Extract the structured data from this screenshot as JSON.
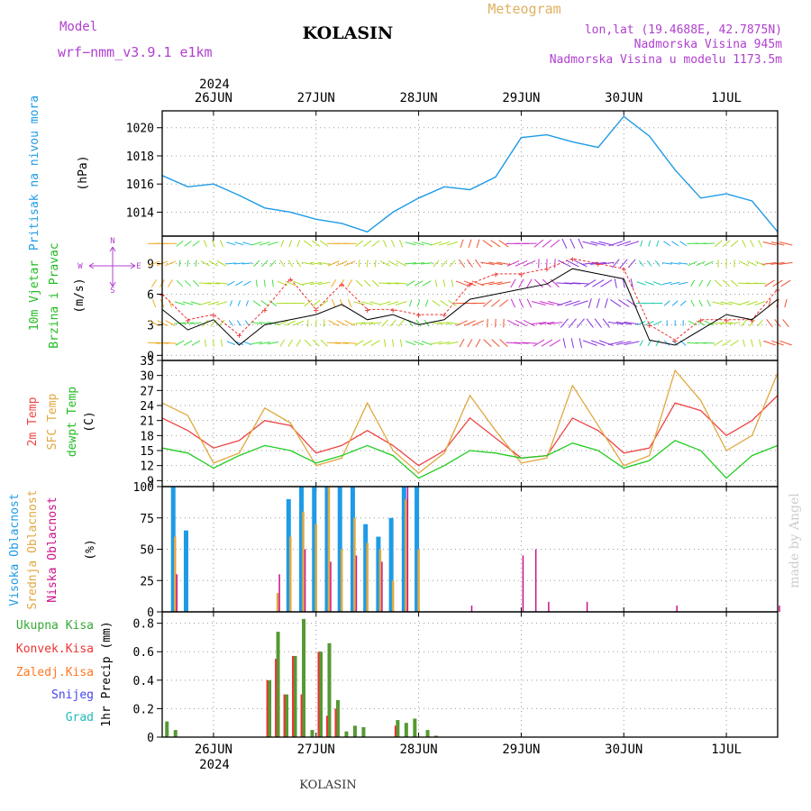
{
  "header": {
    "model_label": "Model",
    "model_name": "wrf−nmm_v3.9.1  e1km",
    "station": "KOLASIN",
    "product": "Meteogram",
    "lonlat": "lon,lat (19.4688E, 42.7875N)",
    "altitude": "Nadmorska Visina 945m",
    "model_altitude": "Nadmorska Visina u modelu 1173.5m",
    "footer_station": "KOLASIN",
    "watermark": "made by Angel"
  },
  "time_axis": {
    "year": "2024",
    "start": "2024-06-25T12:00",
    "end": "2024-07-01T12:00",
    "day_ticks": [
      "26JUN",
      "27JUN",
      "28JUN",
      "29JUN",
      "30JUN",
      "1JUL"
    ]
  },
  "colors": {
    "pressure": "#1e9be6",
    "temp2m": "#ee4444",
    "sfc_temp": "#e0a840",
    "dewpt": "#22cc22",
    "high_cloud": "#1e9be6",
    "mid_cloud": "#e0a840",
    "low_cloud": "#cc1188",
    "total_precip": "#33aa33",
    "convective": "#ee3333",
    "frozen": "#ff7722",
    "snow": "#4444ee",
    "graupel": "#22bbbb",
    "grid": "#999999",
    "label_magenta": "#b040d0",
    "label_gold": "#e0b060"
  },
  "chart_data": [
    {
      "type": "line",
      "ylabel_name": "Pritisak na nivou mora",
      "ylabel_unit": "(hPa)",
      "yticks": [
        1014,
        1016,
        1018,
        1020
      ],
      "ylim": [
        1012.3,
        1021.2
      ],
      "series": [
        {
          "x": [
            "2024-06-25T12:00",
            "2024-06-25T18:00",
            "2024-06-26T00:00",
            "2024-06-26T06:00",
            "2024-06-26T12:00",
            "2024-06-26T18:00",
            "2024-06-27T00:00",
            "2024-06-27T06:00",
            "2024-06-27T12:00",
            "2024-06-27T18:00",
            "2024-06-28T00:00",
            "2024-06-28T06:00",
            "2024-06-28T12:00",
            "2024-06-28T18:00",
            "2024-06-29T00:00",
            "2024-06-29T06:00",
            "2024-06-29T12:00",
            "2024-06-29T18:00",
            "2024-06-30T00:00",
            "2024-06-30T06:00",
            "2024-06-30T12:00",
            "2024-06-30T18:00",
            "2024-07-01T00:00",
            "2024-07-01T06:00",
            "2024-07-01T12:00"
          ],
          "values": [
            1016.6,
            1015.8,
            1016.0,
            1015.2,
            1014.3,
            1014.0,
            1013.5,
            1013.2,
            1012.6,
            1014.0,
            1015.0,
            1015.8,
            1015.6,
            1016.5,
            1019.3,
            1019.5,
            1019.0,
            1018.6,
            1020.8,
            1019.4,
            1017.0,
            1015.0,
            1015.3,
            1014.8,
            1012.6
          ]
        }
      ]
    },
    {
      "type": "line",
      "ylabel_name": "10m Vjetar",
      "ylabel_name2": "Brzina i Pravac",
      "ylabel_unit": "(m/s)",
      "compass": [
        "N",
        "S",
        "W",
        "E"
      ],
      "yticks": [
        0,
        3,
        6,
        9
      ],
      "ylim": [
        -0.5,
        11.7
      ],
      "series": [
        {
          "name": "speed",
          "x": [
            "2024-06-25T12:00",
            "2024-06-25T18:00",
            "2024-06-26T00:00",
            "2024-06-26T06:00",
            "2024-06-26T12:00",
            "2024-06-26T18:00",
            "2024-06-27T00:00",
            "2024-06-27T06:00",
            "2024-06-27T12:00",
            "2024-06-27T18:00",
            "2024-06-28T00:00",
            "2024-06-28T06:00",
            "2024-06-28T12:00",
            "2024-06-28T18:00",
            "2024-06-29T00:00",
            "2024-06-29T06:00",
            "2024-06-29T12:00",
            "2024-06-29T18:00",
            "2024-06-30T00:00",
            "2024-06-30T06:00",
            "2024-06-30T12:00",
            "2024-06-30T18:00",
            "2024-07-01T00:00",
            "2024-07-01T06:00",
            "2024-07-01T12:00"
          ],
          "values": [
            4.5,
            2.5,
            3.5,
            1.0,
            3.0,
            3.5,
            4.0,
            5.0,
            3.5,
            4.0,
            3.0,
            3.5,
            5.5,
            6.0,
            6.5,
            7.0,
            8.5,
            8.0,
            7.5,
            1.5,
            1.0,
            2.5,
            4.0,
            3.5,
            5.5
          ]
        },
        {
          "name": "gust",
          "x": [
            "2024-06-25T12:00",
            "2024-06-25T18:00",
            "2024-06-26T00:00",
            "2024-06-26T06:00",
            "2024-06-26T12:00",
            "2024-06-26T18:00",
            "2024-06-27T00:00",
            "2024-06-27T06:00",
            "2024-06-27T12:00",
            "2024-06-27T18:00",
            "2024-06-28T00:00",
            "2024-06-28T06:00",
            "2024-06-28T12:00",
            "2024-06-28T18:00",
            "2024-06-29T00:00",
            "2024-06-29T06:00",
            "2024-06-29T12:00",
            "2024-06-29T18:00",
            "2024-06-30T00:00",
            "2024-06-30T06:00",
            "2024-06-30T12:00",
            "2024-06-30T18:00",
            "2024-07-01T00:00",
            "2024-07-01T06:00",
            "2024-07-01T12:00"
          ],
          "values": [
            6.0,
            3.5,
            4.0,
            2.0,
            4.5,
            7.5,
            4.5,
            7.0,
            4.5,
            4.5,
            4.0,
            4.0,
            7.0,
            8.0,
            8.0,
            8.5,
            9.5,
            9.0,
            8.5,
            3.0,
            1.5,
            3.5,
            3.5,
            3.5,
            6.5
          ]
        }
      ]
    },
    {
      "type": "line",
      "ylabel_name1": "2m Temp",
      "ylabel_name2": "SFC Temp",
      "ylabel_name3": "dewpt Temp",
      "ylabel_unit": "(C)",
      "yticks": [
        9,
        12,
        15,
        18,
        21,
        24,
        27,
        30,
        33
      ],
      "ylim": [
        7.8,
        33
      ],
      "series": [
        {
          "name": "2m Temp",
          "x": [
            "2024-06-25T12:00",
            "2024-06-25T18:00",
            "2024-06-26T00:00",
            "2024-06-26T06:00",
            "2024-06-26T12:00",
            "2024-06-26T18:00",
            "2024-06-27T00:00",
            "2024-06-27T06:00",
            "2024-06-27T12:00",
            "2024-06-27T18:00",
            "2024-06-28T00:00",
            "2024-06-28T06:00",
            "2024-06-28T12:00",
            "2024-06-28T18:00",
            "2024-06-29T00:00",
            "2024-06-29T06:00",
            "2024-06-29T12:00",
            "2024-06-29T18:00",
            "2024-06-30T00:00",
            "2024-06-30T06:00",
            "2024-06-30T12:00",
            "2024-06-30T18:00",
            "2024-07-01T00:00",
            "2024-07-01T06:00",
            "2024-07-01T12:00"
          ],
          "values": [
            21.5,
            19.0,
            15.5,
            17.0,
            21.0,
            20.0,
            14.5,
            16.0,
            19.0,
            16.0,
            12.0,
            15.0,
            21.5,
            17.5,
            13.5,
            14.0,
            21.5,
            19.0,
            14.5,
            15.5,
            24.5,
            23.0,
            18.0,
            21.0,
            26.0
          ]
        },
        {
          "name": "SFC Temp",
          "x": [
            "2024-06-25T12:00",
            "2024-06-25T18:00",
            "2024-06-26T00:00",
            "2024-06-26T06:00",
            "2024-06-26T12:00",
            "2024-06-26T18:00",
            "2024-06-27T00:00",
            "2024-06-27T06:00",
            "2024-06-27T12:00",
            "2024-06-27T18:00",
            "2024-06-28T00:00",
            "2024-06-28T06:00",
            "2024-06-28T12:00",
            "2024-06-28T18:00",
            "2024-06-29T00:00",
            "2024-06-29T06:00",
            "2024-06-29T12:00",
            "2024-06-29T18:00",
            "2024-06-30T00:00",
            "2024-06-30T06:00",
            "2024-06-30T12:00",
            "2024-06-30T18:00",
            "2024-07-01T00:00",
            "2024-07-01T06:00",
            "2024-07-01T12:00"
          ],
          "values": [
            24.5,
            22.0,
            12.5,
            14.5,
            23.5,
            20.5,
            12.0,
            13.5,
            24.5,
            15.0,
            10.5,
            14.5,
            26.0,
            19.0,
            12.5,
            13.5,
            28.0,
            20.0,
            12.0,
            14.0,
            31.0,
            25.0,
            15.0,
            18.0,
            30.5
          ]
        },
        {
          "name": "dewpt Temp",
          "x": [
            "2024-06-25T12:00",
            "2024-06-25T18:00",
            "2024-06-26T00:00",
            "2024-06-26T06:00",
            "2024-06-26T12:00",
            "2024-06-26T18:00",
            "2024-06-27T00:00",
            "2024-06-27T06:00",
            "2024-06-27T12:00",
            "2024-06-27T18:00",
            "2024-06-28T00:00",
            "2024-06-28T06:00",
            "2024-06-28T12:00",
            "2024-06-28T18:00",
            "2024-06-29T00:00",
            "2024-06-29T06:00",
            "2024-06-29T12:00",
            "2024-06-29T18:00",
            "2024-06-30T00:00",
            "2024-06-30T06:00",
            "2024-06-30T12:00",
            "2024-06-30T18:00",
            "2024-07-01T00:00",
            "2024-07-01T06:00",
            "2024-07-01T12:00"
          ],
          "values": [
            15.5,
            14.5,
            11.5,
            14.0,
            16.0,
            15.0,
            12.5,
            14.0,
            16.0,
            14.0,
            9.5,
            12.0,
            15.0,
            14.5,
            13.5,
            14.0,
            16.5,
            15.0,
            11.5,
            13.0,
            17.0,
            15.0,
            9.5,
            14.0,
            16.0
          ]
        }
      ]
    },
    {
      "type": "bar",
      "ylabel_name1": "Visoka Oblacnost",
      "ylabel_name2": "Srednja Oblacnost",
      "ylabel_name3": "Niska Oblacnost",
      "ylabel_unit": "(%)",
      "yticks": [
        0,
        25,
        50,
        75,
        100
      ],
      "ylim": [
        0,
        100
      ],
      "series": [
        {
          "name": "Visoka Oblacnost",
          "x": [
            "2024-06-25T15:00",
            "2024-06-25T18:00",
            "2024-06-26T18:00",
            "2024-06-26T21:00",
            "2024-06-27T00:00",
            "2024-06-27T03:00",
            "2024-06-27T06:00",
            "2024-06-27T09:00",
            "2024-06-27T12:00",
            "2024-06-27T15:00",
            "2024-06-27T18:00",
            "2024-06-27T21:00",
            "2024-06-28T00:00"
          ],
          "values": [
            100,
            65,
            90,
            100,
            100,
            100,
            100,
            100,
            70,
            60,
            75,
            100,
            100
          ]
        },
        {
          "name": "Srednja Oblacnost",
          "x": [
            "2024-06-25T15:00",
            "2024-06-26T15:00",
            "2024-06-26T18:00",
            "2024-06-26T21:00",
            "2024-06-27T00:00",
            "2024-06-27T03:00",
            "2024-06-27T06:00",
            "2024-06-27T09:00",
            "2024-06-27T12:00",
            "2024-06-27T15:00",
            "2024-06-27T18:00",
            "2024-06-27T21:00",
            "2024-06-28T00:00"
          ],
          "values": [
            60,
            15,
            60,
            80,
            70,
            100,
            50,
            75,
            55,
            50,
            25,
            90,
            50
          ]
        },
        {
          "name": "Niska Oblacnost",
          "x": [
            "2024-06-25T15:00",
            "2024-06-26T15:00",
            "2024-06-26T21:00",
            "2024-06-27T03:00",
            "2024-06-27T09:00",
            "2024-06-27T15:00",
            "2024-06-27T21:00",
            "2024-06-28T12:00",
            "2024-06-29T00:00",
            "2024-06-29T03:00",
            "2024-06-29T06:00",
            "2024-06-29T15:00",
            "2024-06-30T12:00",
            "2024-07-01T12:00"
          ],
          "values": [
            30,
            30,
            50,
            40,
            45,
            40,
            100,
            5,
            45,
            50,
            8,
            8,
            5,
            5
          ]
        }
      ]
    },
    {
      "type": "bar",
      "ylabel_name": "1hr Precip",
      "ylabel_unit": "(mm)",
      "legend": [
        "Ukupna Kisa",
        "Konvek.Kisa",
        "Zaledj.Kisa",
        "Snijeg",
        "Grad"
      ],
      "yticks": [
        0,
        0.2,
        0.4,
        0.6,
        0.8
      ],
      "ylim": [
        0,
        0.88
      ],
      "series": [
        {
          "name": "Ukupna Kisa",
          "x": [
            "2024-06-25T13:00",
            "2024-06-25T15:00",
            "2024-06-26T13:00",
            "2024-06-26T15:00",
            "2024-06-26T17:00",
            "2024-06-26T19:00",
            "2024-06-26T21:00",
            "2024-06-26T23:00",
            "2024-06-27T01:00",
            "2024-06-27T03:00",
            "2024-06-27T05:00",
            "2024-06-27T07:00",
            "2024-06-27T09:00",
            "2024-06-27T11:00",
            "2024-06-27T19:00",
            "2024-06-27T21:00",
            "2024-06-27T23:00",
            "2024-06-28T02:00",
            "2024-06-28T04:00"
          ],
          "values": [
            0.11,
            0.05,
            0.4,
            0.74,
            0.3,
            0.57,
            0.83,
            0.05,
            0.6,
            0.66,
            0.26,
            0.04,
            0.08,
            0.07,
            0.12,
            0.1,
            0.13,
            0.05,
            0.01
          ]
        },
        {
          "name": "Konvek.Kisa",
          "x": [
            "2024-06-26T13:00",
            "2024-06-26T15:00",
            "2024-06-26T17:00",
            "2024-06-26T19:00",
            "2024-06-26T21:00",
            "2024-06-27T01:00",
            "2024-06-27T03:00",
            "2024-06-27T05:00",
            "2024-06-27T19:00"
          ],
          "values": [
            0.4,
            0.55,
            0.3,
            0.57,
            0.3,
            0.6,
            0.15,
            0.2,
            0.08
          ]
        }
      ]
    }
  ]
}
